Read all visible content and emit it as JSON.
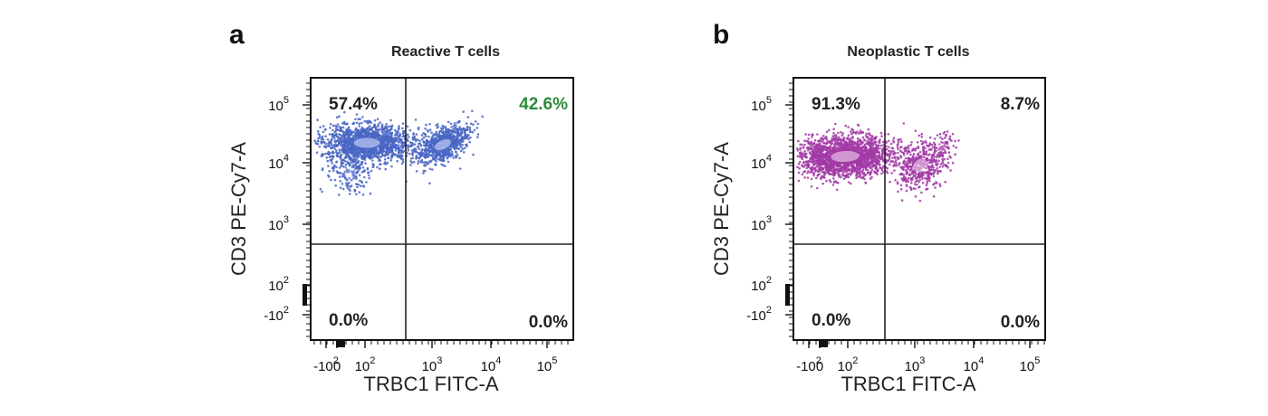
{
  "chart_data": [
    {
      "type": "scatter",
      "panel_letter": "a",
      "title": "Reactive T cells",
      "xlabel": "TRBC1 FITC-A",
      "ylabel": "CD3 PE-Cy7-A",
      "axis_scale": "biexponential",
      "x_ticks": [
        {
          "base": "-10",
          "exp": "2"
        },
        {
          "base": "0",
          "exp": ""
        },
        {
          "base": "10",
          "exp": "2"
        },
        {
          "base": "10",
          "exp": "3"
        },
        {
          "base": "10",
          "exp": "4"
        },
        {
          "base": "10",
          "exp": "5"
        }
      ],
      "y_ticks": [
        {
          "base": "-10",
          "exp": "2"
        },
        {
          "base": "10",
          "exp": "2"
        },
        {
          "base": "10",
          "exp": "3"
        },
        {
          "base": "10",
          "exp": "4"
        },
        {
          "base": "10",
          "exp": "5"
        }
      ],
      "quadrants": {
        "upper_left": "57.4%",
        "upper_right": "42.6%",
        "lower_left": "0.0%",
        "lower_right": "0.0%"
      },
      "quadrant_label_colors": {
        "upper_left": "#222222",
        "upper_right": "#2e8b3a",
        "lower_left": "#222222",
        "lower_right": "#222222"
      },
      "color": "#4a66c4",
      "core_color": "#dfe6ff"
    },
    {
      "type": "scatter",
      "panel_letter": "b",
      "title": "Neoplastic T cells",
      "xlabel": "TRBC1 FITC-A",
      "ylabel": "CD3 PE-Cy7-A",
      "axis_scale": "biexponential",
      "x_ticks": [
        {
          "base": "-10",
          "exp": "2"
        },
        {
          "base": "0",
          "exp": ""
        },
        {
          "base": "10",
          "exp": "2"
        },
        {
          "base": "10",
          "exp": "3"
        },
        {
          "base": "10",
          "exp": "4"
        },
        {
          "base": "10",
          "exp": "5"
        }
      ],
      "y_ticks": [
        {
          "base": "-10",
          "exp": "2"
        },
        {
          "base": "10",
          "exp": "2"
        },
        {
          "base": "10",
          "exp": "3"
        },
        {
          "base": "10",
          "exp": "4"
        },
        {
          "base": "10",
          "exp": "5"
        }
      ],
      "quadrants": {
        "upper_left": "91.3%",
        "upper_right": "8.7%",
        "lower_left": "0.0%",
        "lower_right": "0.0%"
      },
      "quadrant_label_colors": {
        "upper_left": "#222222",
        "upper_right": "#222222",
        "lower_left": "#222222",
        "lower_right": "#222222"
      },
      "color": "#a23aa6",
      "core_color": "#f6e4f6"
    }
  ]
}
